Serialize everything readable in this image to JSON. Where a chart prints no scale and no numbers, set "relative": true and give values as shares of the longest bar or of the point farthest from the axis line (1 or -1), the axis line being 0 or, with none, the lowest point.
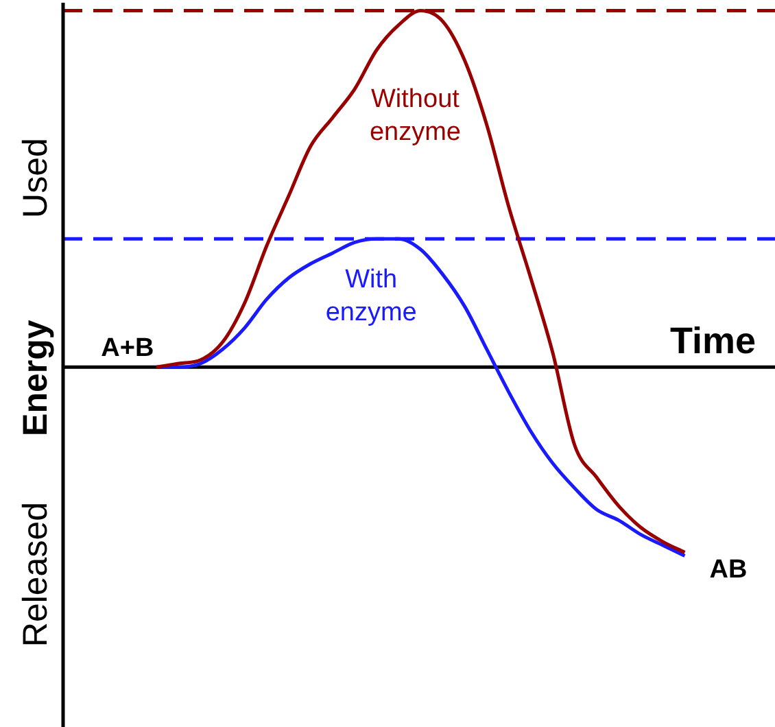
{
  "chart_data": {
    "type": "line",
    "relative": true,
    "xlabel": "Time",
    "ylabel": "Energy",
    "legend": false,
    "marker": "none",
    "categories": [
      null,
      null,
      null,
      null,
      null,
      null,
      null,
      null,
      null,
      null,
      null,
      null,
      null,
      null,
      null,
      null,
      null,
      null,
      null,
      null,
      null,
      null,
      null,
      null,
      null
    ],
    "series": [
      {
        "name": "Without enzyme",
        "color": "#990000",
        "values": [
          0,
          0.01,
          0.02,
          0.07,
          0.18,
          0.34,
          0.48,
          0.62,
          0.7,
          0.78,
          0.89,
          0.96,
          1,
          0.97,
          0.86,
          0.68,
          0.45,
          0.25,
          0.04,
          -0.22,
          -0.31,
          -0.39,
          -0.45,
          -0.49,
          -0.52
        ]
      },
      {
        "name": "With enzyme",
        "color": "#1a1aff",
        "values": [
          0,
          0,
          0.01,
          0.05,
          0.11,
          0.19,
          0.25,
          0.29,
          0.32,
          0.35,
          0.36,
          0.36,
          0.33,
          0.26,
          0.17,
          0.05,
          -0.07,
          -0.18,
          -0.27,
          -0.34,
          -0.4,
          -0.43,
          -0.47,
          -0.5,
          -0.53
        ]
      }
    ],
    "ref_lines": [
      {
        "axis": "y",
        "value": 1,
        "color": "#990000",
        "line_style": "dashed"
      },
      {
        "axis": "y",
        "value": 0.36,
        "color": "#1a1aff",
        "line_style": "dashed"
      }
    ],
    "annotations": [
      "Used",
      "Released",
      "A+B",
      "AB"
    ]
  }
}
